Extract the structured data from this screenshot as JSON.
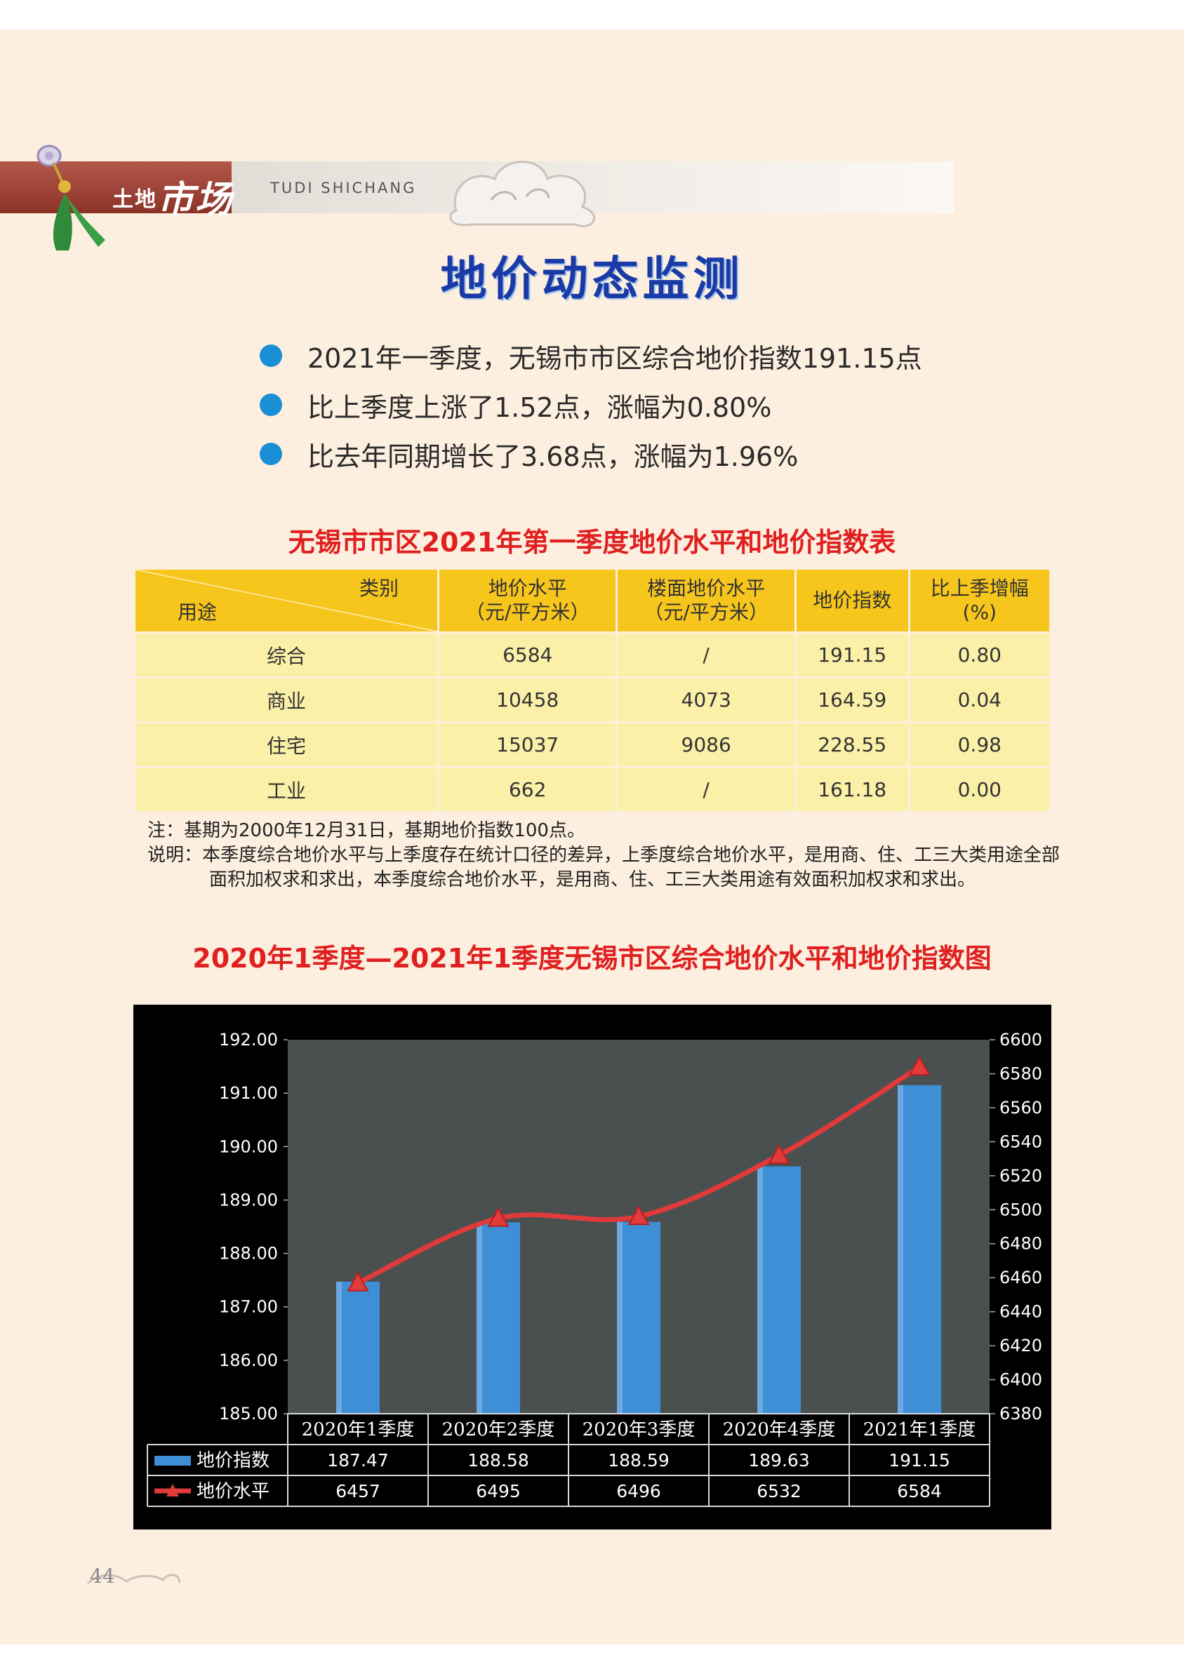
{
  "header": {
    "section_small": "土地",
    "section_big": "市场",
    "pinyin": "TUDI SHICHANG"
  },
  "main_title": "地价动态监测",
  "bullets": [
    "2021年一季度，无锡市市区综合地价指数191.15点",
    "比上季度上涨了1.52点，涨幅为0.80%",
    "比去年同期增长了3.68点，涨幅为1.96%"
  ],
  "table": {
    "title": "无锡市市区2021年第一季度地价水平和地价指数表",
    "corner_category": "类别",
    "corner_use": "用途",
    "headers": [
      [
        "地价水平",
        "（元/平方米）"
      ],
      [
        "楼面地价水平",
        "（元/平方米）"
      ],
      [
        "地价指数",
        ""
      ],
      [
        "比上季增幅",
        "(%)"
      ]
    ],
    "rows": [
      [
        "综合",
        "6584",
        "/",
        "191.15",
        "0.80"
      ],
      [
        "商业",
        "10458",
        "4073",
        "164.59",
        "0.04"
      ],
      [
        "住宅",
        "15037",
        "9086",
        "228.55",
        "0.98"
      ],
      [
        "工业",
        "662",
        "/",
        "161.18",
        "0.00"
      ]
    ]
  },
  "notes": {
    "note": "注：基期为2000年12月31日，基期地价指数100点。",
    "explain": "说明：本季度综合地价水平与上季度存在统计口径的差异，上季度综合地价水平，是用商、住、工三大类用途全部面积加权求和求出，本季度综合地价水平，是用商、住、工三大类用途有效面积加权求和求出。"
  },
  "chart_title": "2020年1季度—2021年1季度无锡市区综合地价水平和地价指数图",
  "chart_data": {
    "type": "bar",
    "categories": [
      "2020年1季度",
      "2020年2季度",
      "2020年3季度",
      "2020年4季度",
      "2021年1季度"
    ],
    "series": [
      {
        "name": "地价指数",
        "type": "bar",
        "axis": "left",
        "values": [
          187.47,
          188.58,
          188.59,
          189.63,
          191.15
        ],
        "labels": [
          "187.47",
          "188.58",
          "188.59",
          "189.63",
          "191.15"
        ],
        "color": "#3f8fd6"
      },
      {
        "name": "地价水平",
        "type": "line",
        "axis": "right",
        "values": [
          6457,
          6495,
          6496,
          6532,
          6584
        ],
        "labels": [
          "6457",
          "6495",
          "6496",
          "6532",
          "6584"
        ],
        "color": "#e03a3a"
      }
    ],
    "y_left": {
      "range": [
        185,
        192
      ],
      "ticks": [
        "185.00",
        "186.00",
        "187.00",
        "188.00",
        "189.00",
        "190.00",
        "191.00",
        "192.00"
      ]
    },
    "y_right": {
      "range": [
        6380,
        6600
      ],
      "ticks": [
        "6380",
        "6400",
        "6420",
        "6440",
        "6460",
        "6480",
        "6500",
        "6520",
        "6540",
        "6560",
        "6580",
        "6600"
      ]
    },
    "legend": "data-table-below",
    "grid": false
  },
  "page_number": "44"
}
